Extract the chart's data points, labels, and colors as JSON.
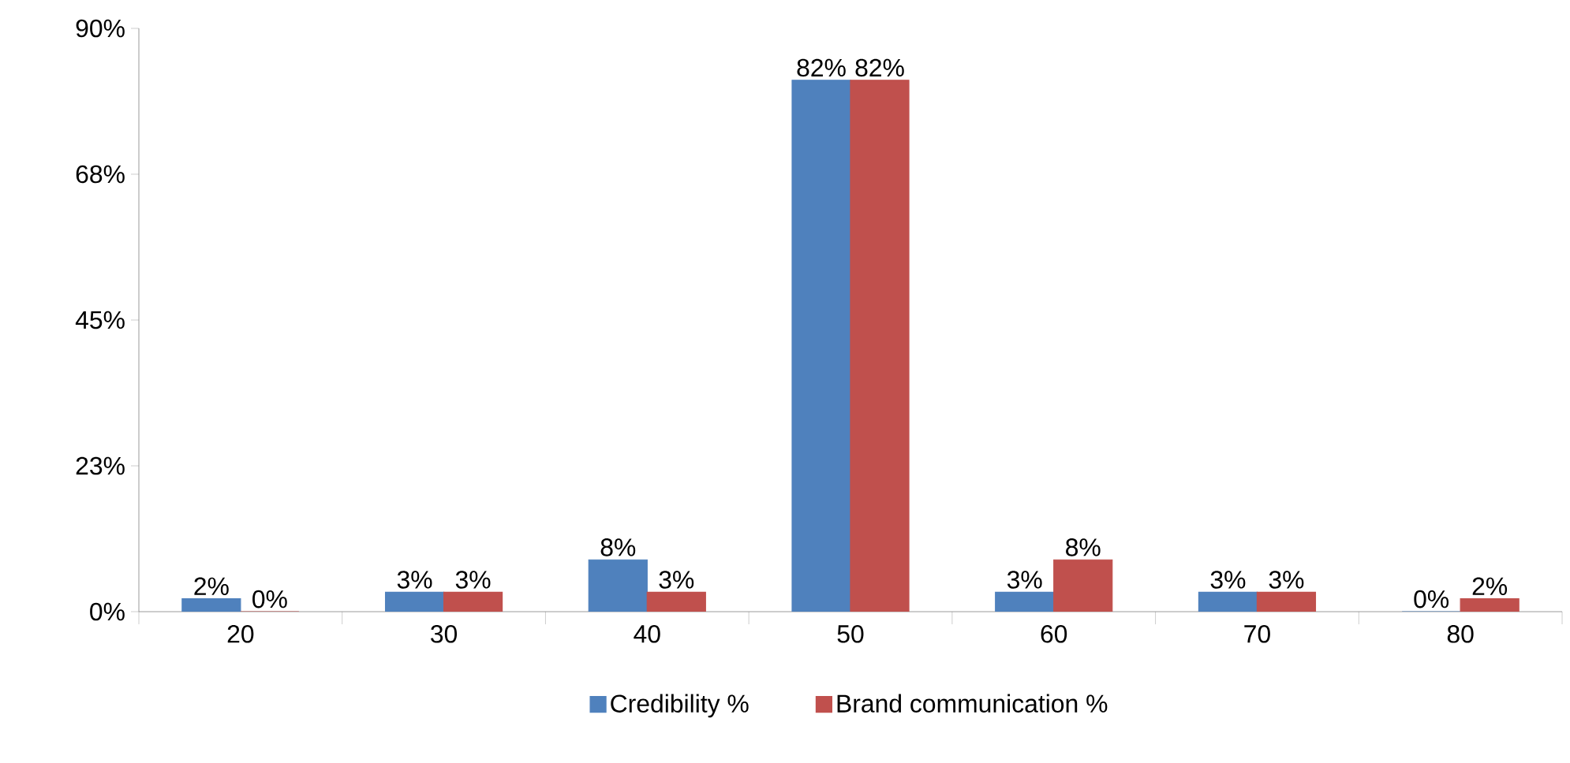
{
  "chart_data": {
    "type": "bar",
    "categories": [
      "20",
      "30",
      "40",
      "50",
      "60",
      "70",
      "80"
    ],
    "series": [
      {
        "name": "Credibility %",
        "color": "#4f81bd",
        "values": [
          2,
          3,
          8,
          82,
          3,
          3,
          0
        ],
        "value_labels": [
          "2%",
          "3%",
          "8%",
          "82%",
          "3%",
          "3%",
          "0%"
        ]
      },
      {
        "name": "Brand communication %",
        "color": "#c0504d",
        "values": [
          0,
          3,
          3,
          82,
          8,
          3,
          2
        ],
        "value_labels": [
          "0%",
          "3%",
          "3%",
          "82%",
          "8%",
          "3%",
          "2%"
        ]
      }
    ],
    "ylim": [
      0,
      90
    ],
    "yticks": [
      {
        "value": 0,
        "label": "0%"
      },
      {
        "value": 22.5,
        "label": "23%"
      },
      {
        "value": 45,
        "label": "45%"
      },
      {
        "value": 67.5,
        "label": "68%"
      },
      {
        "value": 90,
        "label": "90%"
      }
    ],
    "grid": false,
    "legend": "bottom"
  }
}
